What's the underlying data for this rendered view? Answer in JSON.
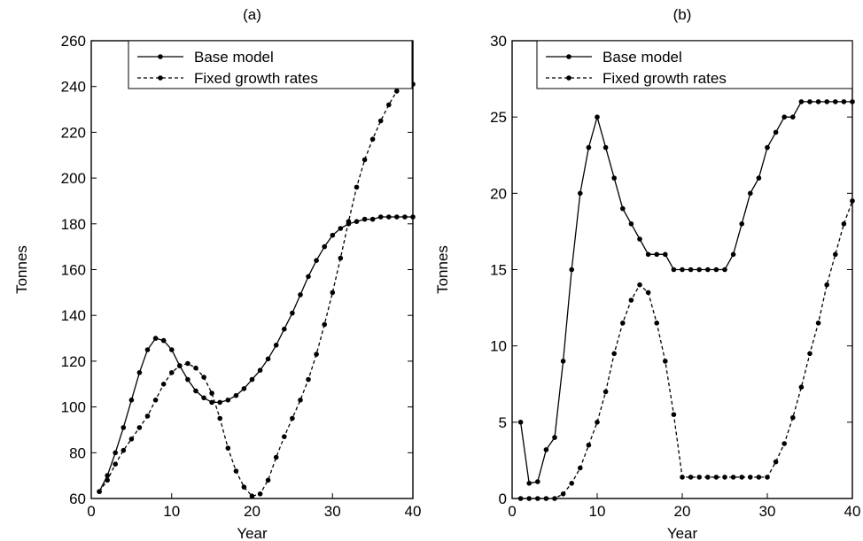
{
  "chart_data": [
    {
      "type": "line",
      "title": "(a)",
      "xlabel": "Year",
      "ylabel": "Tonnes",
      "xlim": [
        0,
        40
      ],
      "ylim": [
        60,
        260
      ],
      "xticks": [
        0,
        10,
        20,
        30,
        40
      ],
      "yticks": [
        60,
        80,
        100,
        120,
        140,
        160,
        180,
        200,
        220,
        240,
        260
      ],
      "grid": false,
      "legend": "top-center",
      "x": [
        1,
        2,
        3,
        4,
        5,
        6,
        7,
        8,
        9,
        10,
        11,
        12,
        13,
        14,
        15,
        16,
        17,
        18,
        19,
        20,
        21,
        22,
        23,
        24,
        25,
        26,
        27,
        28,
        29,
        30,
        31,
        32,
        33,
        34,
        35,
        36,
        37,
        38,
        39,
        40
      ],
      "series": [
        {
          "name": "Base model",
          "style": "solid",
          "values": [
            63,
            70,
            80,
            91,
            103,
            115,
            125,
            130,
            129,
            125,
            118,
            112,
            107,
            104,
            102,
            102,
            103,
            105,
            108,
            112,
            116,
            121,
            127,
            134,
            141,
            149,
            157,
            164,
            170,
            175,
            178,
            180,
            181,
            182,
            182,
            183,
            183,
            183,
            183,
            183
          ]
        },
        {
          "name": "Fixed growth rates",
          "style": "dashed",
          "values": [
            63,
            68,
            75,
            81,
            86,
            91,
            96,
            103,
            110,
            115,
            118,
            119,
            117,
            113,
            106,
            95,
            82,
            72,
            65,
            61,
            62,
            68,
            78,
            87,
            95,
            103,
            112,
            123,
            136,
            150,
            165,
            181,
            196,
            208,
            217,
            225,
            232,
            238,
            241,
            241
          ]
        }
      ]
    },
    {
      "type": "line",
      "title": "(b)",
      "xlabel": "Year",
      "ylabel": "Tonnes",
      "xlim": [
        0,
        40
      ],
      "ylim": [
        0,
        30
      ],
      "xticks": [
        0,
        10,
        20,
        30,
        40
      ],
      "yticks": [
        0,
        5,
        10,
        15,
        20,
        25,
        30
      ],
      "grid": false,
      "legend": "top-right",
      "x": [
        1,
        2,
        3,
        4,
        5,
        6,
        7,
        8,
        9,
        10,
        11,
        12,
        13,
        14,
        15,
        16,
        17,
        18,
        19,
        20,
        21,
        22,
        23,
        24,
        25,
        26,
        27,
        28,
        29,
        30,
        31,
        32,
        33,
        34,
        35,
        36,
        37,
        38,
        39,
        40
      ],
      "series": [
        {
          "name": "Base model",
          "style": "solid",
          "values": [
            5,
            1,
            1.1,
            3.2,
            4,
            9,
            15,
            20,
            23,
            25,
            23,
            21,
            19,
            18,
            17,
            16,
            16,
            16,
            15,
            15,
            15,
            15,
            15,
            15,
            15,
            16,
            18,
            20,
            21,
            23,
            24,
            25,
            25,
            26,
            26,
            26,
            26,
            26,
            26,
            26
          ]
        },
        {
          "name": "Fixed growth rates",
          "style": "dashed",
          "values": [
            0,
            0,
            0,
            0,
            0,
            0.3,
            1,
            2,
            3.5,
            5,
            7,
            9.5,
            11.5,
            13,
            14,
            13.5,
            11.5,
            9,
            5.5,
            1.4,
            1.4,
            1.4,
            1.4,
            1.4,
            1.4,
            1.4,
            1.4,
            1.4,
            1.4,
            1.4,
            2.4,
            3.6,
            5.3,
            7.3,
            9.5,
            11.5,
            14,
            16,
            18,
            19.5
          ]
        }
      ]
    }
  ]
}
